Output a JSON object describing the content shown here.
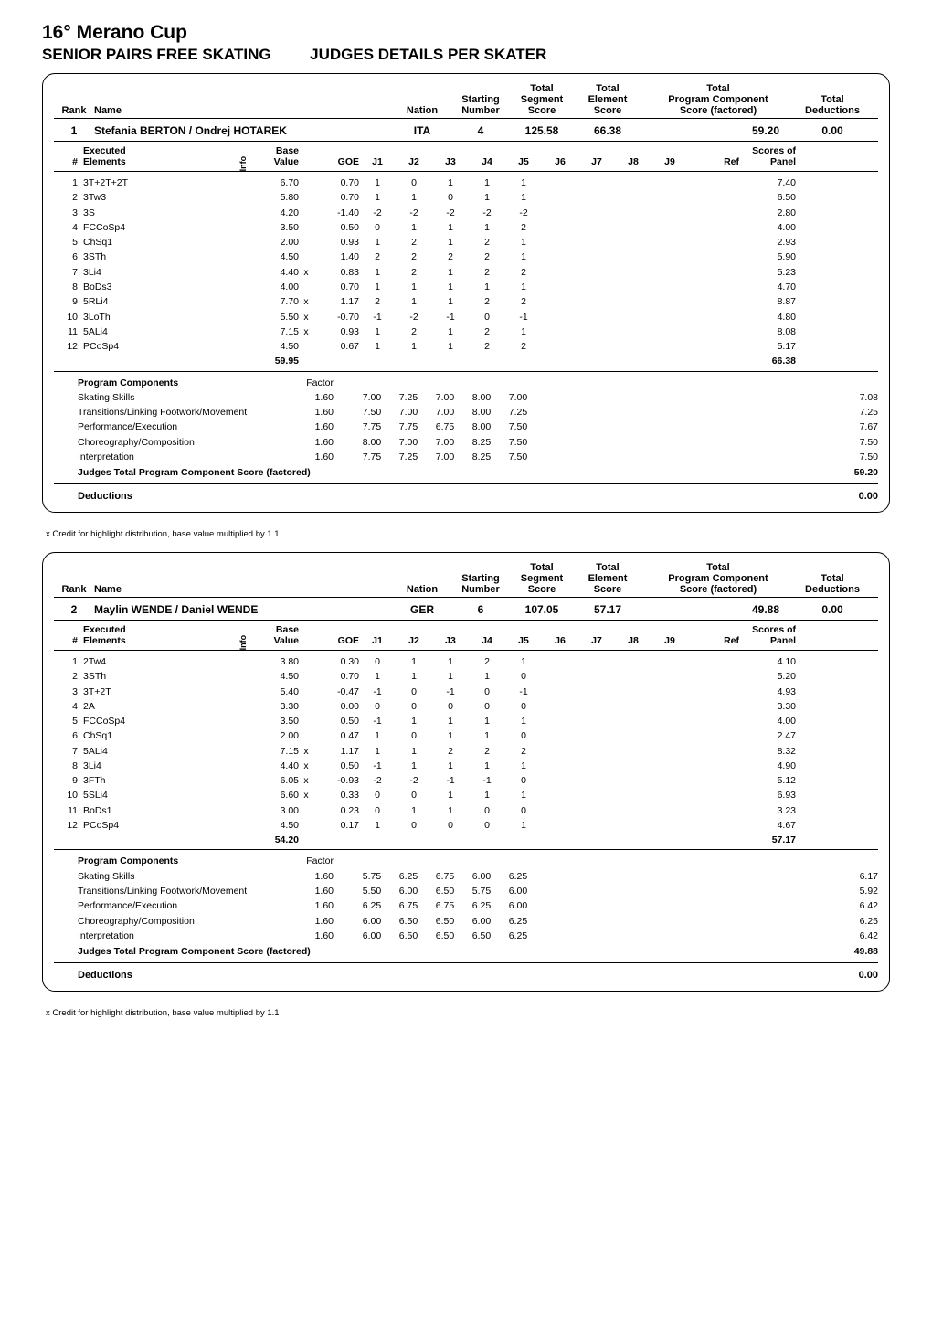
{
  "event": {
    "title": "16° Merano Cup",
    "subtitle_left": "SENIOR PAIRS FREE SKATING",
    "subtitle_right": "JUDGES DETAILS PER SKATER"
  },
  "header_labels": {
    "rank": "Rank",
    "name": "Name",
    "nation": "Nation",
    "starting_number": "Starting\nNumber",
    "total_segment": "Total\nSegment\nScore",
    "total_element": "Total\nElement\nScore",
    "total_pcs": "Total\nProgram Component\nScore (factored)",
    "total_deductions": "Total\nDeductions"
  },
  "elem_header": {
    "num": "#",
    "executed": "Executed\nElements",
    "info": "Info",
    "base": "Base\nValue",
    "goe": "GOE",
    "judges": [
      "J1",
      "J2",
      "J3",
      "J4",
      "J5",
      "J6",
      "J7",
      "J8",
      "J9"
    ],
    "ref": "Ref",
    "scores": "Scores of\nPanel"
  },
  "pc_header": {
    "title": "Program Components",
    "factor": "Factor"
  },
  "judges_total_label": "Judges Total Program Component Score (factored)",
  "deductions_label": "Deductions",
  "footnote": "x  Credit for highlight distribution, base value multiplied by 1.1",
  "skaters": [
    {
      "rank": "1",
      "name": "Stefania BERTON / Ondrej HOTAREK",
      "nation": "ITA",
      "starting_number": "4",
      "total_segment": "125.58",
      "total_element": "66.38",
      "total_pcs": "59.20",
      "total_deductions": "0.00",
      "elements": [
        {
          "n": "1",
          "exe": "3T+2T+2T",
          "bv": "6.70",
          "mark": "",
          "goe": "0.70",
          "j": [
            "1",
            "0",
            "1",
            "1",
            "1",
            "",
            "",
            "",
            ""
          ],
          "sop": "7.40"
        },
        {
          "n": "2",
          "exe": "3Tw3",
          "bv": "5.80",
          "mark": "",
          "goe": "0.70",
          "j": [
            "1",
            "1",
            "0",
            "1",
            "1",
            "",
            "",
            "",
            ""
          ],
          "sop": "6.50"
        },
        {
          "n": "3",
          "exe": "3S",
          "bv": "4.20",
          "mark": "",
          "goe": "-1.40",
          "j": [
            "-2",
            "-2",
            "-2",
            "-2",
            "-2",
            "",
            "",
            "",
            ""
          ],
          "sop": "2.80"
        },
        {
          "n": "4",
          "exe": "FCCoSp4",
          "bv": "3.50",
          "mark": "",
          "goe": "0.50",
          "j": [
            "0",
            "1",
            "1",
            "1",
            "2",
            "",
            "",
            "",
            ""
          ],
          "sop": "4.00"
        },
        {
          "n": "5",
          "exe": "ChSq1",
          "bv": "2.00",
          "mark": "",
          "goe": "0.93",
          "j": [
            "1",
            "2",
            "1",
            "2",
            "1",
            "",
            "",
            "",
            ""
          ],
          "sop": "2.93"
        },
        {
          "n": "6",
          "exe": "3STh",
          "bv": "4.50",
          "mark": "",
          "goe": "1.40",
          "j": [
            "2",
            "2",
            "2",
            "2",
            "1",
            "",
            "",
            "",
            ""
          ],
          "sop": "5.90"
        },
        {
          "n": "7",
          "exe": "3Li4",
          "bv": "4.40",
          "mark": "x",
          "goe": "0.83",
          "j": [
            "1",
            "2",
            "1",
            "2",
            "2",
            "",
            "",
            "",
            ""
          ],
          "sop": "5.23"
        },
        {
          "n": "8",
          "exe": "BoDs3",
          "bv": "4.00",
          "mark": "",
          "goe": "0.70",
          "j": [
            "1",
            "1",
            "1",
            "1",
            "1",
            "",
            "",
            "",
            ""
          ],
          "sop": "4.70"
        },
        {
          "n": "9",
          "exe": "5RLi4",
          "bv": "7.70",
          "mark": "x",
          "goe": "1.17",
          "j": [
            "2",
            "1",
            "1",
            "2",
            "2",
            "",
            "",
            "",
            ""
          ],
          "sop": "8.87"
        },
        {
          "n": "10",
          "exe": "3LoTh",
          "bv": "5.50",
          "mark": "x",
          "goe": "-0.70",
          "j": [
            "-1",
            "-2",
            "-1",
            "0",
            "-1",
            "",
            "",
            "",
            ""
          ],
          "sop": "4.80"
        },
        {
          "n": "11",
          "exe": "5ALi4",
          "bv": "7.15",
          "mark": "x",
          "goe": "0.93",
          "j": [
            "1",
            "2",
            "1",
            "2",
            "1",
            "",
            "",
            "",
            ""
          ],
          "sop": "8.08"
        },
        {
          "n": "12",
          "exe": "PCoSp4",
          "bv": "4.50",
          "mark": "",
          "goe": "0.67",
          "j": [
            "1",
            "1",
            "1",
            "2",
            "2",
            "",
            "",
            "",
            ""
          ],
          "sop": "5.17"
        }
      ],
      "bv_total": "59.95",
      "sop_total": "66.38",
      "components": [
        {
          "name": "Skating Skills",
          "factor": "1.60",
          "j": [
            "7.00",
            "7.25",
            "7.00",
            "8.00",
            "7.00",
            "",
            "",
            "",
            ""
          ],
          "total": "7.08"
        },
        {
          "name": "Transitions/Linking Footwork/Movement",
          "factor": "1.60",
          "j": [
            "7.50",
            "7.00",
            "7.00",
            "8.00",
            "7.25",
            "",
            "",
            "",
            ""
          ],
          "total": "7.25"
        },
        {
          "name": "Performance/Execution",
          "factor": "1.60",
          "j": [
            "7.75",
            "7.75",
            "6.75",
            "8.00",
            "7.50",
            "",
            "",
            "",
            ""
          ],
          "total": "7.67"
        },
        {
          "name": "Choreography/Composition",
          "factor": "1.60",
          "j": [
            "8.00",
            "7.00",
            "7.00",
            "8.25",
            "7.50",
            "",
            "",
            "",
            ""
          ],
          "total": "7.50"
        },
        {
          "name": "Interpretation",
          "factor": "1.60",
          "j": [
            "7.75",
            "7.25",
            "7.00",
            "8.25",
            "7.50",
            "",
            "",
            "",
            ""
          ],
          "total": "7.50"
        }
      ],
      "judges_total_pcs": "59.20",
      "deductions_total": "0.00"
    },
    {
      "rank": "2",
      "name": "Maylin WENDE / Daniel WENDE",
      "nation": "GER",
      "starting_number": "6",
      "total_segment": "107.05",
      "total_element": "57.17",
      "total_pcs": "49.88",
      "total_deductions": "0.00",
      "elements": [
        {
          "n": "1",
          "exe": "2Tw4",
          "bv": "3.80",
          "mark": "",
          "goe": "0.30",
          "j": [
            "0",
            "1",
            "1",
            "2",
            "1",
            "",
            "",
            "",
            ""
          ],
          "sop": "4.10"
        },
        {
          "n": "2",
          "exe": "3STh",
          "bv": "4.50",
          "mark": "",
          "goe": "0.70",
          "j": [
            "1",
            "1",
            "1",
            "1",
            "0",
            "",
            "",
            "",
            ""
          ],
          "sop": "5.20"
        },
        {
          "n": "3",
          "exe": "3T+2T",
          "bv": "5.40",
          "mark": "",
          "goe": "-0.47",
          "j": [
            "-1",
            "0",
            "-1",
            "0",
            "-1",
            "",
            "",
            "",
            ""
          ],
          "sop": "4.93"
        },
        {
          "n": "4",
          "exe": "2A",
          "bv": "3.30",
          "mark": "",
          "goe": "0.00",
          "j": [
            "0",
            "0",
            "0",
            "0",
            "0",
            "",
            "",
            "",
            ""
          ],
          "sop": "3.30"
        },
        {
          "n": "5",
          "exe": "FCCoSp4",
          "bv": "3.50",
          "mark": "",
          "goe": "0.50",
          "j": [
            "-1",
            "1",
            "1",
            "1",
            "1",
            "",
            "",
            "",
            ""
          ],
          "sop": "4.00"
        },
        {
          "n": "6",
          "exe": "ChSq1",
          "bv": "2.00",
          "mark": "",
          "goe": "0.47",
          "j": [
            "1",
            "0",
            "1",
            "1",
            "0",
            "",
            "",
            "",
            ""
          ],
          "sop": "2.47"
        },
        {
          "n": "7",
          "exe": "5ALi4",
          "bv": "7.15",
          "mark": "x",
          "goe": "1.17",
          "j": [
            "1",
            "1",
            "2",
            "2",
            "2",
            "",
            "",
            "",
            ""
          ],
          "sop": "8.32"
        },
        {
          "n": "8",
          "exe": "3Li4",
          "bv": "4.40",
          "mark": "x",
          "goe": "0.50",
          "j": [
            "-1",
            "1",
            "1",
            "1",
            "1",
            "",
            "",
            "",
            ""
          ],
          "sop": "4.90"
        },
        {
          "n": "9",
          "exe": "3FTh",
          "bv": "6.05",
          "mark": "x",
          "goe": "-0.93",
          "j": [
            "-2",
            "-2",
            "-1",
            "-1",
            "0",
            "",
            "",
            "",
            ""
          ],
          "sop": "5.12"
        },
        {
          "n": "10",
          "exe": "5SLi4",
          "bv": "6.60",
          "mark": "x",
          "goe": "0.33",
          "j": [
            "0",
            "0",
            "1",
            "1",
            "1",
            "",
            "",
            "",
            ""
          ],
          "sop": "6.93"
        },
        {
          "n": "11",
          "exe": "BoDs1",
          "bv": "3.00",
          "mark": "",
          "goe": "0.23",
          "j": [
            "0",
            "1",
            "1",
            "0",
            "0",
            "",
            "",
            "",
            ""
          ],
          "sop": "3.23"
        },
        {
          "n": "12",
          "exe": "PCoSp4",
          "bv": "4.50",
          "mark": "",
          "goe": "0.17",
          "j": [
            "1",
            "0",
            "0",
            "0",
            "1",
            "",
            "",
            "",
            ""
          ],
          "sop": "4.67"
        }
      ],
      "bv_total": "54.20",
      "sop_total": "57.17",
      "components": [
        {
          "name": "Skating Skills",
          "factor": "1.60",
          "j": [
            "5.75",
            "6.25",
            "6.75",
            "6.00",
            "6.25",
            "",
            "",
            "",
            ""
          ],
          "total": "6.17"
        },
        {
          "name": "Transitions/Linking Footwork/Movement",
          "factor": "1.60",
          "j": [
            "5.50",
            "6.00",
            "6.50",
            "5.75",
            "6.00",
            "",
            "",
            "",
            ""
          ],
          "total": "5.92"
        },
        {
          "name": "Performance/Execution",
          "factor": "1.60",
          "j": [
            "6.25",
            "6.75",
            "6.75",
            "6.25",
            "6.00",
            "",
            "",
            "",
            ""
          ],
          "total": "6.42"
        },
        {
          "name": "Choreography/Composition",
          "factor": "1.60",
          "j": [
            "6.00",
            "6.50",
            "6.50",
            "6.00",
            "6.25",
            "",
            "",
            "",
            ""
          ],
          "total": "6.25"
        },
        {
          "name": "Interpretation",
          "factor": "1.60",
          "j": [
            "6.00",
            "6.50",
            "6.50",
            "6.50",
            "6.25",
            "",
            "",
            "",
            ""
          ],
          "total": "6.42"
        }
      ],
      "judges_total_pcs": "49.88",
      "deductions_total": "0.00"
    }
  ]
}
